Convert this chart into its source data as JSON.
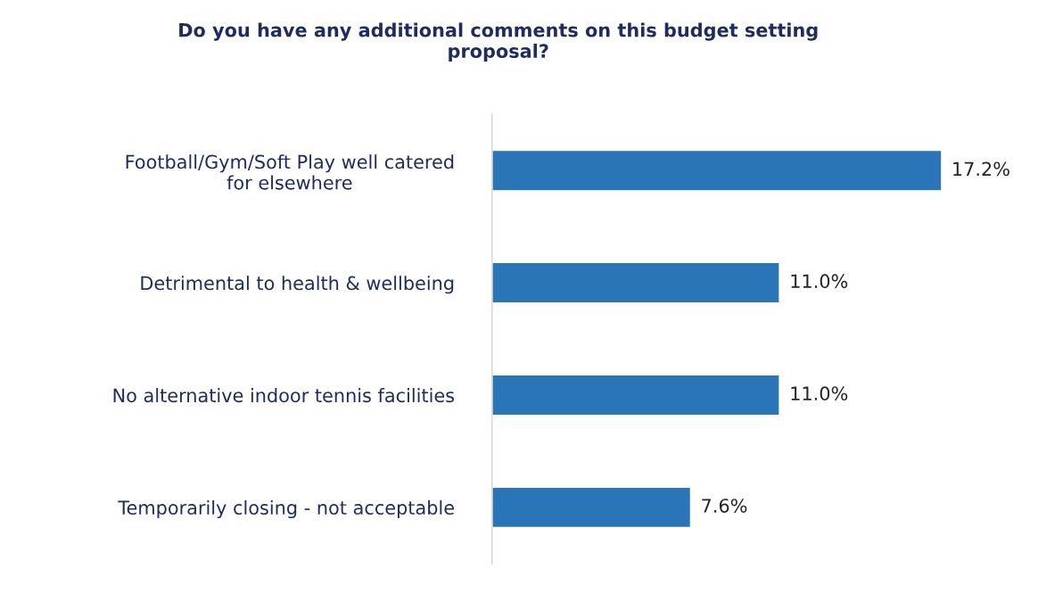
{
  "chart_data": {
    "type": "bar",
    "orientation": "horizontal",
    "title": "Do you have any additional comments on this budget setting\nproposal?",
    "categories": [
      "Football/Gym/Soft Play well catered\nfor elsewhere",
      "Detrimental to health & wellbeing",
      "No alternative indoor tennis facilities",
      "Temporarily closing - not acceptable"
    ],
    "values": [
      17.2,
      11.0,
      11.0,
      7.6
    ],
    "value_labels": [
      "17.2%",
      "11.0%",
      "11.0%",
      "7.6%"
    ],
    "color": "#2a74b8",
    "grid": false,
    "legend": false
  }
}
